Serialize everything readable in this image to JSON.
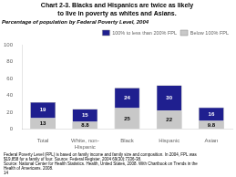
{
  "chart_data": {
    "type": "bar",
    "title": "Chart 2-3. Blacks and Hispanics are twice as likely\nto live in poverty as whites and Asians.",
    "subtitle": "Percentage of population by Federal Poverty Level, 2004",
    "categories": [
      "Total",
      "White, non-\nHispanic",
      "Black",
      "Hispanic",
      "Asian"
    ],
    "series": [
      {
        "name": "Below 100% FPL",
        "color": "#c8c8c8",
        "values": [
          13,
          8.8,
          25,
          22,
          9.8
        ]
      },
      {
        "name": "100% to less than 200% FPL",
        "color": "#1f1f8f",
        "values": [
          19,
          15,
          24,
          30,
          16
        ]
      }
    ],
    "stacked": true,
    "data_labels": true,
    "legend": "upper right",
    "grid": false,
    "ylim": [
      0,
      100
    ],
    "yticks": [
      0,
      20,
      40,
      60,
      80,
      100
    ],
    "annotations": [
      "Federal Poverty Level (FPL) is based on family income and family size and composition. In 2004, FPL was",
      "$19,858 for a family of four. Source: Federal Register, 2004 69(30):7336-38.",
      "Source: National Center for Health Statistics. Health, United States, 2008. With Chartbook on Trends in the",
      "Health of Americans. 2008.",
      "14"
    ]
  }
}
